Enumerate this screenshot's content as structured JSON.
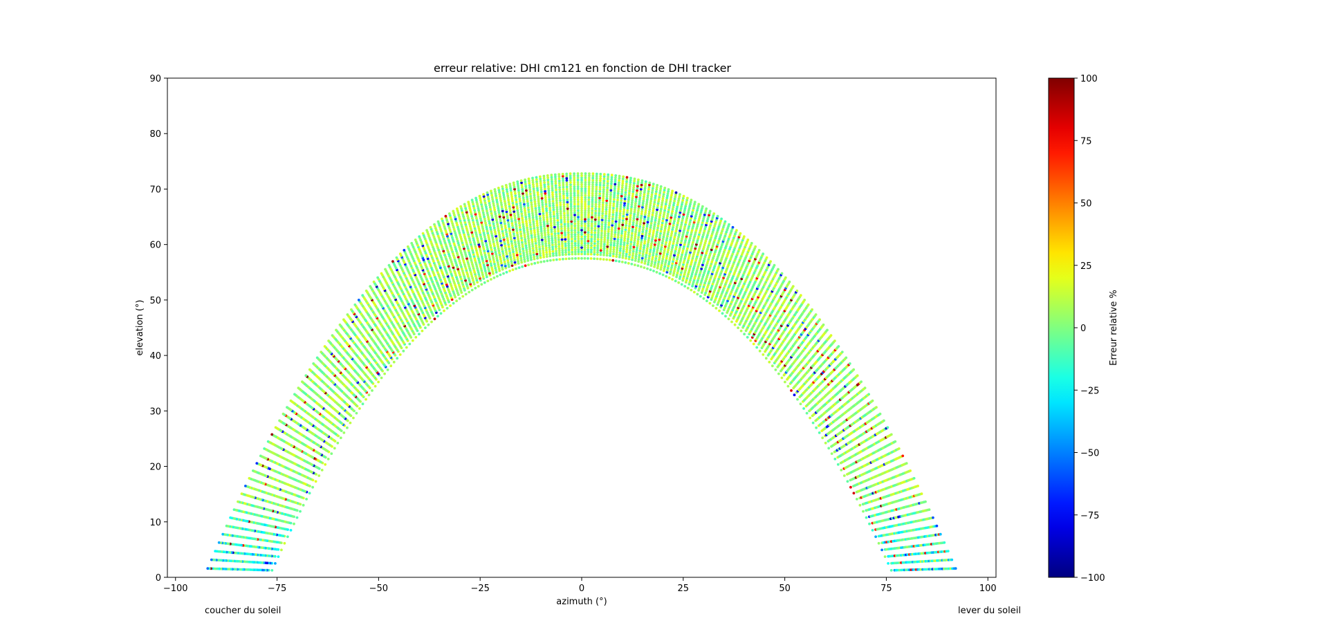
{
  "chart_data": {
    "type": "scatter",
    "title": "erreur relative: DHI cm121 en fonction de DHI tracker",
    "xlabel": "azimuth (°)",
    "ylabel": "elevation (°)",
    "xlim": [
      -102,
      102
    ],
    "ylim": [
      0,
      90
    ],
    "xticks": [
      "−100",
      "−75",
      "−50",
      "−25",
      "0",
      "25",
      "50",
      "75",
      "100"
    ],
    "xtick_values": [
      -100,
      -75,
      -50,
      -25,
      0,
      25,
      50,
      75,
      100
    ],
    "yticks": [
      "0",
      "10",
      "20",
      "30",
      "40",
      "50",
      "60",
      "70",
      "80",
      "90"
    ],
    "ytick_values": [
      0,
      10,
      20,
      30,
      40,
      50,
      60,
      70,
      80,
      90
    ],
    "grid": false,
    "colorbar": {
      "label": "Erreur relative %",
      "colormap": "jet",
      "range": [
        -100,
        100
      ],
      "ticks": [
        "−100",
        "−75",
        "−50",
        "−25",
        "0",
        "25",
        "50",
        "75",
        "100"
      ],
      "tick_values": [
        -100,
        -75,
        -50,
        -25,
        0,
        25,
        50,
        75,
        100
      ]
    },
    "sun_paths": {
      "count": 40,
      "peak_elevation_range": [
        57.5,
        72.8
      ],
      "azimuth_at_horizon_range": [
        77,
        93
      ],
      "typical_value_range": [
        -10,
        20
      ]
    },
    "annotations": {
      "left": "coucher du soleil",
      "right": "lever du soleil"
    }
  }
}
